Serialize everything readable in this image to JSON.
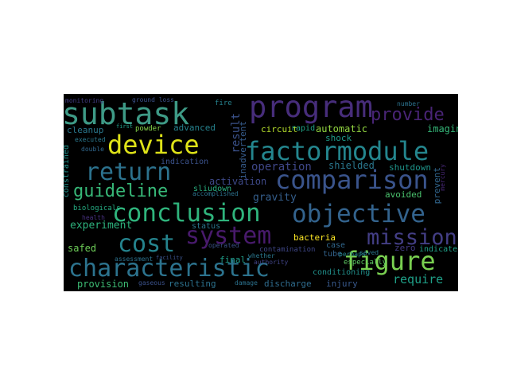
{
  "wordcloud": {
    "background": "#000000",
    "words": [
      {
        "text": "program",
        "color": "#472d7b"
      },
      {
        "text": "subtask",
        "color": "#3e9a86"
      },
      {
        "text": "device",
        "color": "#dfe318"
      },
      {
        "text": "factormodule",
        "color": "#24868e"
      },
      {
        "text": "provide",
        "color": "#482475"
      },
      {
        "text": "return",
        "color": "#2c728e"
      },
      {
        "text": "comparison",
        "color": "#3a548c"
      },
      {
        "text": "guideline",
        "color": "#37b878"
      },
      {
        "text": "conclusion",
        "color": "#2fb47c"
      },
      {
        "text": "objective",
        "color": "#33638d"
      },
      {
        "text": "system",
        "color": "#481a6c"
      },
      {
        "text": "mission",
        "color": "#433e85"
      },
      {
        "text": "cost",
        "color": "#25848e"
      },
      {
        "text": "figure",
        "color": "#7ad151"
      },
      {
        "text": "characteristic",
        "color": "#2c738e"
      },
      {
        "text": "experiment",
        "color": "#2db27d"
      },
      {
        "text": "require",
        "color": "#1fa088"
      },
      {
        "text": "result",
        "color": "#3b528b"
      },
      {
        "text": "inadvertent",
        "color": "#365c8d"
      },
      {
        "text": "operation",
        "color": "#3f4788"
      },
      {
        "text": "shielded",
        "color": "#2a778e"
      },
      {
        "text": "shutdown",
        "color": "#1f958b"
      },
      {
        "text": "prevent",
        "color": "#31668e"
      },
      {
        "text": "circuit",
        "color": "#b5de2b"
      },
      {
        "text": "automatic",
        "color": "#93d741"
      },
      {
        "text": "imaging",
        "color": "#35b779"
      },
      {
        "text": "cleanup",
        "color": "#2a788e"
      },
      {
        "text": "advanced",
        "color": "#26828e"
      },
      {
        "text": "activation",
        "color": "#3e4989"
      },
      {
        "text": "gravity",
        "color": "#355f8d"
      },
      {
        "text": "sliudown",
        "color": "#29af7f"
      },
      {
        "text": "rapid",
        "color": "#20a486"
      },
      {
        "text": "shock",
        "color": "#1e9c89"
      },
      {
        "text": "indication",
        "color": "#3b528b"
      },
      {
        "text": "bacteria",
        "color": "#fde725"
      },
      {
        "text": "safed",
        "color": "#6ece58"
      },
      {
        "text": "provision",
        "color": "#3dbc74"
      },
      {
        "text": "resulting",
        "color": "#2c728e"
      },
      {
        "text": "discharge",
        "color": "#2f6c8e"
      },
      {
        "text": "injury",
        "color": "#38598c"
      },
      {
        "text": "conditioning",
        "color": "#21918c"
      },
      {
        "text": "zero",
        "color": "#443a83"
      },
      {
        "text": "tube",
        "color": "#33638d"
      },
      {
        "text": "case",
        "color": "#31688e"
      },
      {
        "text": "final",
        "color": "#1f9e89"
      },
      {
        "text": "avoided",
        "color": "#4ac16d"
      },
      {
        "text": "indicated",
        "color": "#1fa088"
      },
      {
        "text": "status",
        "color": "#2a788e"
      },
      {
        "text": "constrained",
        "color": "#21918c"
      },
      {
        "text": "biologicals",
        "color": "#25ac82"
      },
      {
        "text": "health",
        "color": "#46307e"
      },
      {
        "text": "assessment",
        "color": "#2c728e"
      },
      {
        "text": "gaseous",
        "color": "#3b528b"
      },
      {
        "text": "powder",
        "color": "#86d549"
      },
      {
        "text": "fire",
        "color": "#26828e"
      },
      {
        "text": "especially",
        "color": "#5ec962"
      },
      {
        "text": "contamination",
        "color": "#3f4788"
      },
      {
        "text": "executed",
        "color": "#2a788e"
      },
      {
        "text": "double",
        "color": "#31688e"
      },
      {
        "text": "operated",
        "color": "#3b528b"
      },
      {
        "text": "accomplished",
        "color": "#2c728e"
      },
      {
        "text": "authority",
        "color": "#414487"
      },
      {
        "text": "damage",
        "color": "#2c728e"
      },
      {
        "text": "whether",
        "color": "#2a788e"
      },
      {
        "text": "perhaps",
        "color": "#25848e"
      },
      {
        "text": "saved",
        "color": "#2a788e"
      },
      {
        "text": "monitoring",
        "color": "#433e85"
      },
      {
        "text": "ground loss",
        "color": "#3b528b"
      },
      {
        "text": "first",
        "color": "#1f9e89"
      },
      {
        "text": "mercury",
        "color": "#482878"
      },
      {
        "text": "number",
        "color": "#2c728e"
      },
      {
        "text": "facility",
        "color": "#3b528b"
      }
    ]
  }
}
